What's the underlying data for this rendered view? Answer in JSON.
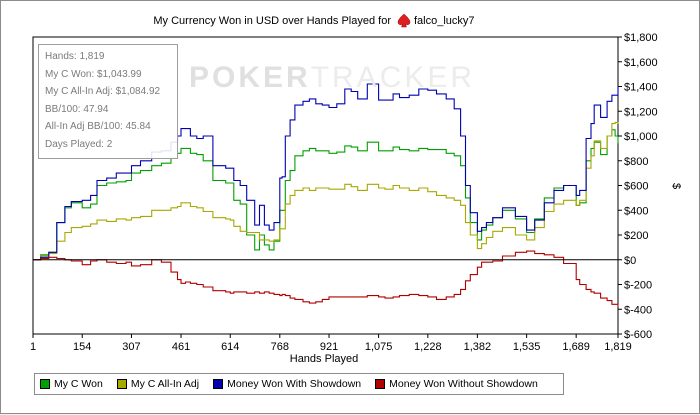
{
  "chart_data": {
    "type": "line",
    "title": "My Currency Won in USD over Hands Played for",
    "player_name": "falco_lucky7",
    "xlabel": "Hands Played",
    "ylabel": "$",
    "xlim": [
      1,
      1819
    ],
    "ylim": [
      -600,
      1800
    ],
    "x_ticks": [
      1,
      154,
      307,
      461,
      614,
      768,
      921,
      1075,
      1228,
      1382,
      1535,
      1689,
      1819
    ],
    "x_tick_labels": [
      "1",
      "154",
      "307",
      "461",
      "614",
      "768",
      "921",
      "1,075",
      "1,228",
      "1,382",
      "1,535",
      "1,689",
      "1,819"
    ],
    "y_ticks": [
      -600,
      -400,
      -200,
      0,
      200,
      400,
      600,
      800,
      1000,
      1200,
      1400,
      1600,
      1800
    ],
    "y_tick_labels": [
      "$-600",
      "$-400",
      "$-200",
      "$0",
      "$200",
      "$400",
      "$600",
      "$800",
      "$1,000",
      "$1,200",
      "$1,400",
      "$1,600",
      "$1,800"
    ],
    "grid": false,
    "series": [
      {
        "name": "My C Won",
        "color": "#00a000",
        "x": [
          1,
          25,
          50,
          75,
          100,
          120,
          154,
          180,
          200,
          230,
          260,
          290,
          307,
          335,
          370,
          400,
          430,
          450,
          461,
          475,
          490,
          510,
          530,
          560,
          600,
          614,
          625,
          645,
          665,
          690,
          705,
          720,
          735,
          750,
          768,
          775,
          785,
          800,
          815,
          840,
          860,
          880,
          900,
          921,
          945,
          970,
          990,
          1010,
          1040,
          1075,
          1095,
          1120,
          1140,
          1170,
          1200,
          1228,
          1255,
          1285,
          1310,
          1330,
          1345,
          1360,
          1382,
          1395,
          1410,
          1430,
          1460,
          1500,
          1535,
          1560,
          1590,
          1620,
          1650,
          1689,
          1700,
          1720,
          1735,
          1745,
          1765,
          1785,
          1800,
          1810,
          1819
        ],
        "y": [
          0,
          40,
          60,
          300,
          420,
          460,
          420,
          450,
          600,
          620,
          630,
          640,
          700,
          720,
          760,
          780,
          820,
          860,
          900,
          900,
          860,
          850,
          800,
          640,
          620,
          620,
          480,
          450,
          200,
          80,
          200,
          120,
          80,
          150,
          400,
          400,
          640,
          720,
          840,
          880,
          900,
          880,
          880,
          860,
          870,
          920,
          910,
          880,
          950,
          880,
          880,
          910,
          890,
          880,
          900,
          890,
          890,
          860,
          840,
          760,
          500,
          300,
          160,
          240,
          280,
          340,
          400,
          330,
          220,
          330,
          500,
          580,
          600,
          440,
          460,
          800,
          900,
          950,
          850,
          1000,
          1050,
          1000,
          940
        ]
      },
      {
        "name": "My C All-In Adj",
        "color": "#a8a800",
        "x": [
          1,
          25,
          50,
          75,
          100,
          120,
          154,
          180,
          200,
          230,
          260,
          290,
          307,
          335,
          370,
          400,
          430,
          450,
          461,
          475,
          490,
          510,
          530,
          560,
          600,
          614,
          625,
          645,
          665,
          690,
          705,
          720,
          735,
          750,
          768,
          775,
          785,
          800,
          815,
          840,
          860,
          880,
          900,
          921,
          945,
          970,
          990,
          1010,
          1040,
          1075,
          1095,
          1120,
          1140,
          1170,
          1200,
          1228,
          1255,
          1285,
          1310,
          1330,
          1345,
          1360,
          1382,
          1395,
          1410,
          1430,
          1460,
          1500,
          1535,
          1560,
          1590,
          1620,
          1650,
          1689,
          1700,
          1720,
          1735,
          1745,
          1765,
          1785,
          1800,
          1810,
          1819
        ],
        "y": [
          0,
          30,
          50,
          150,
          220,
          260,
          270,
          290,
          320,
          310,
          330,
          320,
          340,
          350,
          400,
          400,
          420,
          430,
          460,
          460,
          430,
          420,
          390,
          340,
          330,
          320,
          270,
          230,
          220,
          220,
          160,
          160,
          150,
          160,
          250,
          250,
          450,
          520,
          560,
          580,
          560,
          580,
          580,
          570,
          570,
          610,
          590,
          560,
          610,
          580,
          570,
          600,
          580,
          560,
          580,
          550,
          520,
          500,
          480,
          440,
          300,
          200,
          90,
          130,
          180,
          230,
          260,
          200,
          160,
          260,
          390,
          450,
          480,
          440,
          480,
          740,
          840,
          960,
          900,
          1000,
          1100,
          1110,
          1100
        ]
      },
      {
        "name": "Money Won With Showdown",
        "color": "#0000b0",
        "x": [
          1,
          25,
          50,
          75,
          100,
          120,
          154,
          180,
          200,
          230,
          260,
          290,
          307,
          335,
          370,
          400,
          430,
          450,
          461,
          475,
          490,
          510,
          530,
          560,
          600,
          614,
          625,
          645,
          665,
          690,
          705,
          720,
          735,
          750,
          768,
          775,
          785,
          800,
          815,
          840,
          860,
          880,
          900,
          921,
          945,
          970,
          990,
          1010,
          1040,
          1075,
          1095,
          1120,
          1140,
          1170,
          1200,
          1228,
          1255,
          1285,
          1310,
          1330,
          1345,
          1360,
          1382,
          1395,
          1410,
          1430,
          1460,
          1500,
          1535,
          1560,
          1590,
          1620,
          1650,
          1689,
          1700,
          1720,
          1735,
          1745,
          1765,
          1785,
          1800,
          1810,
          1819
        ],
        "y": [
          0,
          20,
          60,
          300,
          430,
          470,
          480,
          520,
          640,
          660,
          700,
          700,
          760,
          800,
          870,
          880,
          950,
          1000,
          1060,
          1060,
          1000,
          980,
          1000,
          760,
          740,
          740,
          640,
          600,
          480,
          280,
          440,
          280,
          240,
          300,
          660,
          670,
          1000,
          1130,
          1250,
          1280,
          1300,
          1260,
          1250,
          1230,
          1260,
          1380,
          1360,
          1300,
          1420,
          1290,
          1290,
          1340,
          1310,
          1330,
          1380,
          1370,
          1340,
          1300,
          1220,
          1000,
          600,
          380,
          230,
          260,
          300,
          340,
          420,
          350,
          240,
          320,
          460,
          560,
          600,
          520,
          560,
          980,
          1100,
          1250,
          1150,
          1280,
          1330,
          1330,
          1400
        ]
      },
      {
        "name": "Money Won Without Showdown",
        "color": "#b00000",
        "x": [
          1,
          25,
          50,
          75,
          100,
          120,
          154,
          180,
          200,
          230,
          260,
          290,
          307,
          335,
          370,
          400,
          430,
          450,
          461,
          475,
          490,
          510,
          530,
          560,
          600,
          614,
          625,
          645,
          665,
          690,
          705,
          720,
          735,
          750,
          768,
          775,
          785,
          800,
          815,
          840,
          860,
          880,
          900,
          921,
          945,
          970,
          990,
          1010,
          1040,
          1075,
          1095,
          1120,
          1140,
          1170,
          1200,
          1228,
          1255,
          1285,
          1310,
          1330,
          1345,
          1360,
          1382,
          1395,
          1410,
          1430,
          1460,
          1500,
          1535,
          1560,
          1590,
          1620,
          1650,
          1689,
          1700,
          1720,
          1735,
          1745,
          1765,
          1785,
          1800,
          1810,
          1819
        ],
        "y": [
          0,
          10,
          20,
          10,
          0,
          -10,
          -40,
          -10,
          0,
          -20,
          -30,
          -20,
          -50,
          -40,
          0,
          -20,
          -100,
          -160,
          -190,
          -180,
          -190,
          -200,
          -220,
          -250,
          -260,
          -270,
          -260,
          -260,
          -270,
          -260,
          -270,
          -260,
          -270,
          -280,
          -290,
          -280,
          -290,
          -310,
          -320,
          -340,
          -350,
          -340,
          -320,
          -300,
          -300,
          -300,
          -300,
          -300,
          -290,
          -300,
          -310,
          -300,
          -290,
          -280,
          -290,
          -300,
          -320,
          -300,
          -280,
          -240,
          -170,
          -120,
          -60,
          -20,
          -20,
          -10,
          30,
          60,
          70,
          50,
          40,
          20,
          -30,
          -160,
          -200,
          -240,
          -260,
          -270,
          -310,
          -330,
          -360,
          -360,
          -380
        ]
      }
    ],
    "legend_position": "bottom-left"
  },
  "stats": [
    "Hands: 1,819",
    "My C Won: $1,043.99",
    "My C All-In Adj: $1,084.92",
    "BB/100: 47.94",
    "All-In Adj BB/100: 45.84",
    "Days Played: 2"
  ],
  "watermark": {
    "part1": "POKER",
    "part2": "TRACKER"
  },
  "icons": {
    "title_icon": "spade-icon",
    "title_icon_color": "#e02020"
  },
  "colors": {
    "zero_line": "#000000",
    "axis": "#000000"
  }
}
